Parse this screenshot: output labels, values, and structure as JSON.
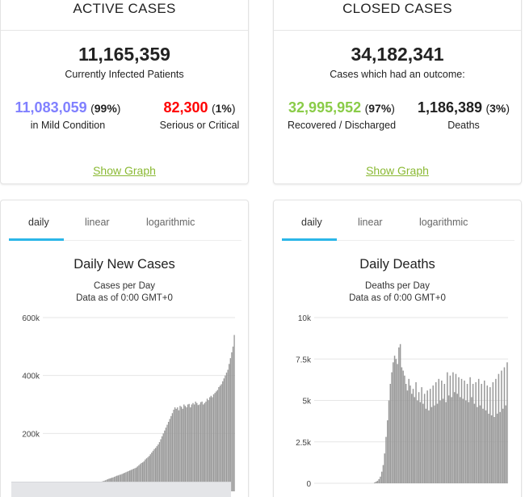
{
  "active": {
    "title": "ACTIVE CASES",
    "total": "11,165,359",
    "total_label": "Currently Infected Patients",
    "mild": {
      "value": "11,083,059",
      "pct": "99%",
      "label": "in Mild Condition",
      "color": "#8080ff"
    },
    "serious": {
      "value": "82,300",
      "pct": "1%",
      "label": "Serious or Critical",
      "color": "#ff0000"
    },
    "link": "Show Graph"
  },
  "closed": {
    "title": "CLOSED CASES",
    "total": "34,182,341",
    "total_label": "Cases which had an outcome:",
    "recovered": {
      "value": "32,995,952",
      "pct": "97%",
      "label": "Recovered / Discharged",
      "color": "#8acc48"
    },
    "deaths": {
      "value": "1,186,389",
      "pct": "3%",
      "label": "Deaths",
      "color": "#222222"
    },
    "link": "Show Graph"
  },
  "tabs": {
    "daily": "daily",
    "linear": "linear",
    "log": "logarithmic",
    "accent": "#2bb6e8"
  },
  "chart_data": [
    {
      "type": "bar",
      "title": "Daily New Cases",
      "subtitle": "Cases per Day",
      "subtitle2": "Data as of 0:00 GMT+0",
      "ylim": [
        0,
        600000
      ],
      "yticks": [
        "600k",
        "400k",
        "200k"
      ],
      "bar_color": "#999999",
      "values": [
        0,
        0,
        0,
        0,
        0,
        0,
        0,
        0,
        0,
        0,
        0,
        0,
        0,
        0,
        0,
        0,
        0,
        0,
        0,
        0,
        0,
        0,
        0,
        0,
        0,
        0,
        0,
        0,
        0,
        0,
        0,
        0,
        0,
        0,
        0,
        500,
        1000,
        2000,
        3000,
        5000,
        8000,
        12000,
        18000,
        25000,
        30000,
        33000,
        35000,
        36000,
        38000,
        40000,
        42000,
        44000,
        45000,
        47000,
        48000,
        50000,
        52000,
        54000,
        55000,
        57000,
        58000,
        60000,
        62000,
        64000,
        66000,
        68000,
        70000,
        72000,
        74000,
        76000,
        78000,
        80000,
        82000,
        86000,
        90000,
        94000,
        98000,
        100000,
        104000,
        110000,
        114000,
        118000,
        122000,
        128000,
        134000,
        140000,
        146000,
        150000,
        156000,
        162000,
        170000,
        180000,
        190000,
        200000,
        210000,
        220000,
        230000,
        240000,
        250000,
        260000,
        270000,
        282000,
        290000,
        285000,
        290000,
        280000,
        295000,
        292000,
        285000,
        300000,
        295000,
        290000,
        300000,
        302000,
        290000,
        300000,
        305000,
        300000,
        310000,
        305000,
        298000,
        300000,
        308000,
        310000,
        300000,
        305000,
        310000,
        320000,
        315000,
        325000,
        330000,
        325000,
        335000,
        340000,
        345000,
        350000,
        360000,
        365000,
        370000,
        380000,
        390000,
        400000,
        410000,
        420000,
        440000,
        460000,
        480000,
        500000,
        540000
      ]
    },
    {
      "type": "bar",
      "title": "Daily Deaths",
      "subtitle": "Deaths per Day",
      "subtitle2": "Data as of 0:00 GMT+0",
      "ylim": [
        0,
        10000
      ],
      "yticks": [
        "10k",
        "7.5k",
        "5k",
        "2.5k",
        "0"
      ],
      "bar_color": "#999999",
      "values": [
        0,
        0,
        0,
        0,
        0,
        0,
        0,
        0,
        0,
        0,
        0,
        0,
        0,
        0,
        0,
        0,
        0,
        0,
        0,
        0,
        0,
        0,
        0,
        0,
        0,
        0,
        0,
        0,
        0,
        0,
        0,
        0,
        0,
        0,
        0,
        0,
        0,
        0,
        0,
        0,
        0,
        0,
        50,
        100,
        150,
        250,
        400,
        700,
        1100,
        1800,
        2800,
        3800,
        5000,
        6000,
        6700,
        7300,
        7700,
        7500,
        7200,
        8200,
        8400,
        7000,
        6800,
        6500,
        6000,
        5600,
        6300,
        5900,
        5400,
        5700,
        5200,
        6100,
        5000,
        5500,
        4900,
        5800,
        4800,
        5400,
        4500,
        5600,
        4400,
        5700,
        4600,
        5900,
        4700,
        6100,
        4800,
        6300,
        5000,
        6200,
        5100,
        6000,
        4900,
        6700,
        5300,
        6500,
        5200,
        6700,
        5500,
        6600,
        5400,
        6400,
        5200,
        6300,
        5100,
        6200,
        5000,
        6000,
        4900,
        6400,
        5200,
        6000,
        4800,
        6100,
        4600,
        6300,
        4700,
        6000,
        4500,
        6200,
        4400,
        5900,
        4200,
        5800,
        4100,
        6100,
        4000,
        6300,
        4200,
        6600,
        4300,
        6800,
        4500,
        7000,
        4700,
        7300
      ]
    }
  ]
}
